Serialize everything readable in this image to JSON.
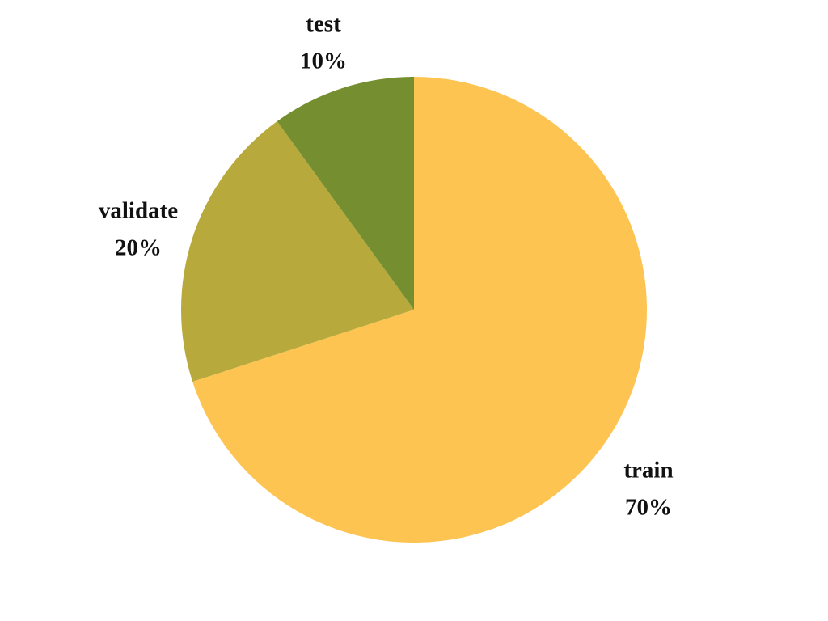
{
  "chart_data": {
    "type": "pie",
    "title": "",
    "start_angle_deg": 0,
    "direction": "clockwise",
    "slices": [
      {
        "label": "train",
        "value": 70,
        "percent_label": "70%",
        "color": "#FDC452"
      },
      {
        "label": "validate",
        "value": 20,
        "percent_label": "20%",
        "color": "#B7A93B"
      },
      {
        "label": "test",
        "value": 10,
        "percent_label": "10%",
        "color": "#758E2F"
      }
    ]
  }
}
